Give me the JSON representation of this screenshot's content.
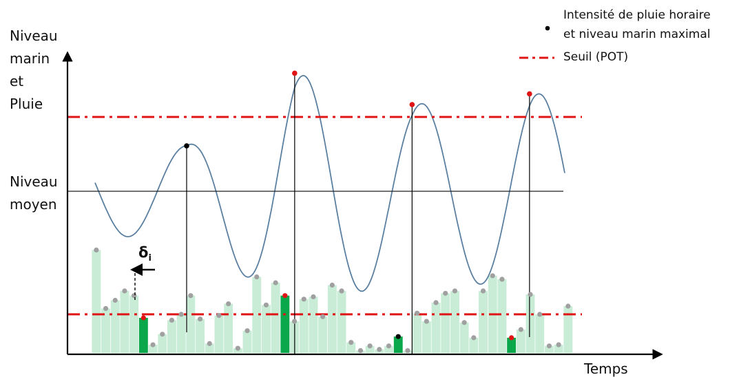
{
  "labels": {
    "y_axis_lines": [
      "Niveau",
      "marin",
      "et",
      "Pluie"
    ],
    "mean_level_lines": [
      "Niveau",
      "moyen"
    ],
    "x_axis": "Temps",
    "delta_symbol": "δ",
    "delta_subscript": "i"
  },
  "legend": {
    "point_entry_line1": "Intensité de pluie horaire",
    "point_entry_line2": "et niveau marin maximal",
    "threshold_entry": "Seuil (POT)"
  },
  "colors": {
    "sea_curve": "#5a7fa0",
    "rain_bar": "#c8ecd6",
    "rain_bar_selected": "#0aa84a",
    "threshold": "#e01414",
    "point_default": "#a0a0a0",
    "point_peak": "#e01414",
    "point_other": "#000000",
    "axis": "#000000"
  },
  "rain_bars": {
    "values": [
      0.88,
      0.38,
      0.45,
      0.53,
      0.49,
      0.3,
      0.07,
      0.16,
      0.28,
      0.33,
      0.49,
      0.29,
      0.08,
      0.32,
      0.42,
      0.04,
      0.19,
      0.65,
      0.41,
      0.6,
      0.49,
      0.27,
      0.46,
      0.48,
      0.31,
      0.58,
      0.53,
      0.09,
      0.02,
      0.06,
      0.03,
      0.06,
      0.14,
      0.02,
      0.34,
      0.27,
      0.43,
      0.51,
      0.53,
      0.26,
      0.13,
      0.53,
      0.66,
      0.63,
      0.13,
      0.2,
      0.5,
      0.33,
      0.06,
      0.07,
      0.4
    ],
    "selected": [
      5,
      20,
      32,
      44
    ],
    "events": [
      {
        "bar": 5,
        "type": "peak"
      },
      {
        "bar": 20,
        "type": "peak"
      },
      {
        "bar": 32,
        "type": "other"
      },
      {
        "bar": 44,
        "type": "peak"
      }
    ]
  },
  "sea_level": {
    "mean": 0,
    "baseline_trend": 0.12,
    "peaks": [
      {
        "t": 0.195,
        "value": 0.55,
        "type": "other"
      },
      {
        "t": 0.425,
        "value": 1.43,
        "type": "peak"
      },
      {
        "t": 0.675,
        "value": 1.05,
        "type": "peak"
      },
      {
        "t": 0.925,
        "value": 1.18,
        "type": "peak"
      }
    ],
    "threshold_high": 0.9,
    "threshold_low_rain": 0.33
  }
}
